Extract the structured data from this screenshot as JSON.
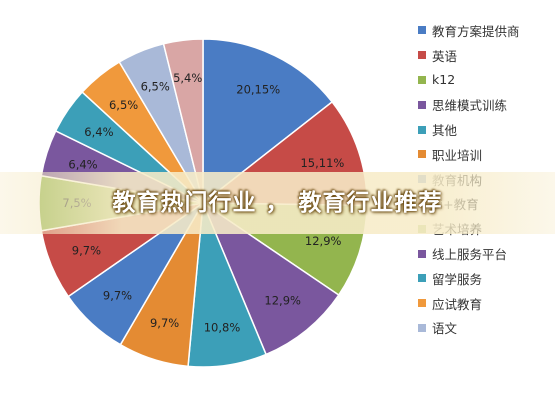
{
  "chart_data": {
    "type": "pie",
    "series": [
      {
        "name": "教育方案提供商",
        "label": "20,15%",
        "value": 20.15,
        "color": "#4a7cc4"
      },
      {
        "name": "英语",
        "label": "15,11%",
        "value": 15.11,
        "color": "#c64b47"
      },
      {
        "name": "k12",
        "label": "12,9%",
        "value": 12.9,
        "color": "#93b54e"
      },
      {
        "name": "思维模式训练",
        "label": "12,9%",
        "value": 12.9,
        "color": "#7a579e"
      },
      {
        "name": "其他",
        "label": "10,8%",
        "value": 10.8,
        "color": "#3c9fb8"
      },
      {
        "name": "职业培训",
        "label": "9,7%",
        "value": 9.7,
        "color": "#e48b33"
      },
      {
        "name": "教育机构",
        "label": "9,7%",
        "value": 9.7,
        "color": "#4a7cc4"
      },
      {
        "name": "ai+教育",
        "label": "9,7%",
        "value": 9.7,
        "color": "#c64b47"
      },
      {
        "name": "艺术培养",
        "label": "7,5%",
        "value": 7.5,
        "color": "#93b54e"
      },
      {
        "name": "线上服务平台",
        "label": "6,4%",
        "value": 6.4,
        "color": "#7a579e"
      },
      {
        "name": "留学服务",
        "label": "6,4%",
        "value": 6.4,
        "color": "#3c9fb8"
      },
      {
        "name": "应试教育",
        "label": "6,5%",
        "value": 6.5,
        "color": "#f0993c"
      },
      {
        "name": "语文",
        "label": "6,5%",
        "value": 6.5,
        "color": "#a9b9d8"
      },
      {
        "name": "",
        "label": "5,4%",
        "value": 5.4,
        "color": "#d9a6a5"
      }
    ],
    "legend_position": "right"
  },
  "banner": {
    "title": "教育热门行业 ， 教育行业推荐"
  }
}
